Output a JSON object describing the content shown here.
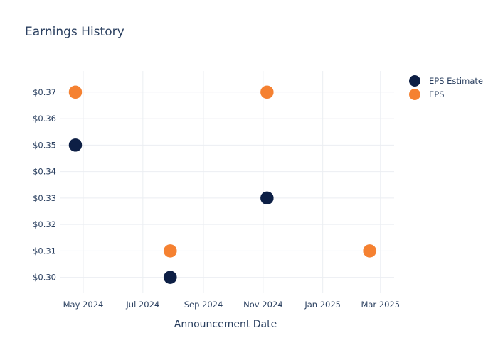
{
  "chart_data": {
    "type": "scatter",
    "title": "Earnings History",
    "xlabel": "Announcement Date",
    "ylabel": "",
    "x_ticks": [
      "May 2024",
      "Jul 2024",
      "Sep 2024",
      "Nov 2024",
      "Jan 2025",
      "Mar 2025"
    ],
    "y_ticks": [
      "$0.30",
      "$0.31",
      "$0.32",
      "$0.33",
      "$0.34",
      "$0.35",
      "$0.36",
      "$0.37"
    ],
    "ylim": [
      0.294,
      0.378
    ],
    "xlim": [
      "2024-04-07",
      "2025-03-15"
    ],
    "grid": true,
    "legend_position": "top-right",
    "series": [
      {
        "name": "EPS Estimate",
        "color": "#0d1f45",
        "points": [
          {
            "x": "2024-04-23",
            "y": 0.35
          },
          {
            "x": "2024-07-29",
            "y": 0.3
          },
          {
            "x": "2024-11-05",
            "y": 0.33
          },
          {
            "x": "2025-02-18",
            "y": 0.31
          }
        ]
      },
      {
        "name": "EPS",
        "color": "#f58131",
        "points": [
          {
            "x": "2024-04-23",
            "y": 0.37
          },
          {
            "x": "2024-07-29",
            "y": 0.31
          },
          {
            "x": "2024-11-05",
            "y": 0.37
          },
          {
            "x": "2025-02-18",
            "y": 0.31
          }
        ]
      }
    ]
  }
}
